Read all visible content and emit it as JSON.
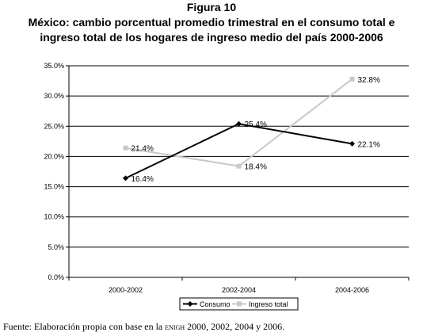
{
  "figure_label": "Figura 10",
  "title_line1": "México: cambio porcentual promedio trimestral en el consumo total e",
  "title_line2": "ingreso total de los hogares de ingreso medio del país 2000-2006",
  "source": {
    "prefix": "Fuente: Elaboración propia con base en la ",
    "acronym": "enigh",
    "suffix": " 2000, 2002, 2004 y 2006."
  },
  "chart_data": {
    "type": "line",
    "categories": [
      "2000-2002",
      "2002-2004",
      "2004-2006"
    ],
    "series": [
      {
        "name": "Consumo",
        "values": [
          16.4,
          25.4,
          22.1
        ],
        "labels": [
          "16.4%",
          "25.4%",
          "22.1%"
        ],
        "color": "#000000",
        "marker": "diamond"
      },
      {
        "name": "Ingreso total",
        "values": [
          21.4,
          18.4,
          32.8
        ],
        "labels": [
          "21.4%",
          "18.4%",
          "32.8%"
        ],
        "color": "#c8c8c8",
        "marker": "square"
      }
    ],
    "ylim": [
      0,
      35
    ],
    "yticks": [
      0,
      5,
      10,
      15,
      20,
      25,
      30,
      35
    ],
    "ytick_labels": [
      "0.0%",
      "5.0%",
      "10.0%",
      "15.0%",
      "20.0%",
      "25.0%",
      "30.0%",
      "35.0%"
    ],
    "grid": true,
    "legend_position": "bottom"
  }
}
